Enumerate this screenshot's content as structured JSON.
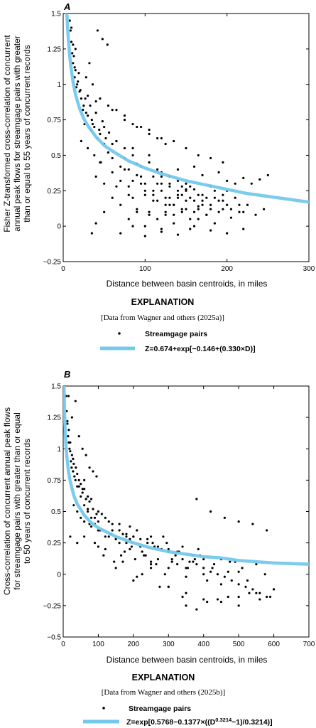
{
  "chart_data": [
    {
      "type": "scatter",
      "panel_label": "A",
      "xlabel": "Distance between basin centroids, in miles",
      "ylabel_lines": [
        "Fisher Z-transformed cross-correlation of concurrent",
        "annual peak flows for streamgage pairs with greater",
        "than or equal to 55 years of concurrent records"
      ],
      "xlim": [
        0,
        300
      ],
      "ylim": [
        -0.25,
        1.5
      ],
      "xticks": [
        0,
        100,
        200,
        300
      ],
      "yticks": [
        -0.25,
        0,
        0.25,
        0.5,
        0.75,
        1,
        1.25,
        1.5
      ],
      "ytick_labels": [
        "−0.25",
        "0",
        "0.25",
        "0.5",
        "0.75",
        "1",
        "1.25",
        "1.5"
      ],
      "grid": false,
      "colors": {
        "points": "#000000",
        "curve": "#74c8ec"
      },
      "legend": {
        "title": "EXPLANATION",
        "source": "[Data from Wagner and others (2025a)]",
        "points_label": "Streamgage pairs",
        "curve_label": "Z=0.674+exp[−0.146+(0.330×D)]"
      },
      "series": [
        {
          "kind": "points",
          "x": [
            8,
            9,
            10,
            11,
            12,
            13,
            14,
            15,
            16,
            18,
            20,
            22,
            25,
            28,
            30,
            35,
            38,
            40,
            45,
            50,
            10,
            12,
            14,
            15,
            17,
            19,
            21,
            24,
            27,
            30,
            33,
            36,
            40,
            44,
            48,
            52,
            56,
            60,
            22,
            26,
            30,
            34,
            38,
            42,
            46,
            50,
            55,
            60,
            65,
            70,
            75,
            80,
            85,
            90,
            40,
            45,
            50,
            55,
            60,
            65,
            70,
            75,
            80,
            85,
            90,
            95,
            100,
            105,
            110,
            115,
            120,
            60,
            65,
            70,
            75,
            80,
            85,
            90,
            95,
            100,
            105,
            110,
            115,
            120,
            125,
            130,
            135,
            140,
            145,
            150,
            80,
            85,
            90,
            95,
            100,
            105,
            110,
            115,
            120,
            125,
            130,
            135,
            140,
            145,
            150,
            155,
            160,
            165,
            170,
            100,
            105,
            110,
            115,
            120,
            125,
            130,
            135,
            140,
            145,
            150,
            155,
            160,
            165,
            170,
            175,
            180,
            185,
            190,
            195,
            200,
            120,
            125,
            130,
            135,
            140,
            145,
            150,
            155,
            160,
            165,
            170,
            175,
            180,
            185,
            190,
            195,
            200,
            205,
            210,
            215,
            220,
            130,
            140,
            150,
            160,
            170,
            180,
            190,
            200,
            210,
            220,
            230,
            240,
            250,
            155,
            165,
            175,
            185,
            195,
            205,
            215,
            225,
            235,
            245,
            60,
            75,
            90,
            105,
            120,
            135,
            150,
            165,
            180,
            195,
            45,
            55,
            65,
            75,
            85,
            95,
            105,
            115,
            125,
            28,
            32,
            36,
            42,
            48,
            54,
            35,
            40,
            50,
            70,
            85,
            100,
            120,
            140,
            160,
            180,
            200,
            220
          ],
          "y": [
            1.45,
            1.38,
            1.3,
            1.22,
            1.15,
            1.2,
            1.05,
            1.1,
            0.98,
            1.02,
            0.95,
            0.9,
            0.85,
            0.8,
            0.92,
            0.75,
            0.7,
            0.88,
            0.65,
            0.7,
            1.4,
            1.28,
            1.12,
            1.25,
            1.0,
            1.08,
            0.96,
            0.82,
            0.9,
            0.78,
            0.85,
            0.72,
            0.8,
            0.68,
            0.74,
            0.62,
            0.66,
            0.58,
            0.6,
            0.72,
            0.55,
            0.68,
            0.5,
            0.62,
            0.45,
            0.58,
            0.52,
            0.48,
            0.6,
            0.42,
            0.55,
            0.4,
            0.5,
            0.44,
            0.35,
            0.45,
            0.3,
            0.52,
            0.38,
            0.6,
            0.32,
            0.48,
            0.28,
            0.55,
            0.36,
            0.42,
            0.3,
            0.5,
            0.25,
            0.4,
            0.35,
            0.2,
            0.28,
            0.15,
            0.4,
            0.22,
            0.32,
            0.1,
            0.35,
            0.25,
            0.45,
            0.18,
            0.3,
            0.38,
            0.2,
            0.28,
            0.15,
            0.32,
            0.22,
            0.26,
            0.05,
            0.2,
            0.12,
            0.3,
            0.22,
            0.08,
            0.35,
            0.18,
            0.25,
            0.1,
            0.3,
            0.15,
            0.22,
            0.28,
            0.12,
            0.2,
            0.26,
            0.14,
            0.18,
            0.0,
            0.1,
            0.22,
            0.05,
            0.3,
            0.15,
            0.2,
            0.08,
            0.25,
            0.12,
            0.18,
            0.28,
            0.1,
            0.22,
            0.15,
            0.2,
            0.12,
            0.25,
            0.18,
            0.22,
            0.15,
            -0.02,
            0.08,
            0.15,
            0.02,
            0.2,
            0.1,
            0.25,
            0.05,
            0.18,
            0.12,
            0.22,
            0.08,
            0.15,
            0.2,
            0.1,
            0.18,
            0.25,
            0.12,
            0.2,
            0.15,
            0.1,
            0.35,
            0.4,
            0.3,
            0.42,
            0.36,
            0.28,
            0.38,
            0.32,
            0.3,
            0.34,
            0.3,
            0.33,
            0.36,
            -0.02,
            0.05,
            0.08,
            0.02,
            0.12,
            0.06,
            0.1,
            0.15,
            0.08,
            0.12,
            0.82,
            0.75,
            0.7,
            0.68,
            0.62,
            0.6,
            0.55,
            0.5,
            0.48,
            0.45,
            0.9,
            0.85,
            0.82,
            0.78,
            0.72,
            0.7,
            0.65,
            0.62,
            0.58,
            1.05,
            1.15,
            1.0,
            1.38,
            1.32,
            1.28,
            -0.05,
            0.02,
            0.1,
            -0.05,
            0.0,
            -0.07,
            -0.04,
            -0.06,
            0.0,
            -0.03,
            -0.05,
            -0.02
          ]
        },
        {
          "kind": "curve",
          "x": [
            4,
            6,
            8,
            10,
            12,
            15,
            20,
            25,
            30,
            40,
            50,
            60,
            80,
            100,
            120,
            150,
            175,
            200,
            225,
            250,
            275,
            300
          ],
          "y": [
            1.55,
            1.34,
            1.2,
            1.1,
            1.02,
            0.93,
            0.83,
            0.76,
            0.71,
            0.63,
            0.57,
            0.53,
            0.46,
            0.41,
            0.37,
            0.32,
            0.29,
            0.26,
            0.23,
            0.21,
            0.19,
            0.17
          ]
        }
      ]
    },
    {
      "type": "scatter",
      "panel_label": "B",
      "xlabel": "Distance between basin centroids, in miles",
      "ylabel_lines": [
        "Cross-correlation of concurrent annual peak flows",
        "for streamgage pairs with greater than or equal",
        "to 50 years of concurrent records"
      ],
      "xlim": [
        0,
        700
      ],
      "ylim": [
        -0.5,
        1.5
      ],
      "xticks": [
        0,
        100,
        200,
        300,
        400,
        500,
        600,
        700
      ],
      "yticks": [
        -0.5,
        -0.25,
        0,
        0.25,
        0.5,
        0.75,
        1,
        1.25,
        1.5
      ],
      "ytick_labels": [
        "−0.5",
        "−0.25",
        "0",
        "0.25",
        "0.5",
        "0.75",
        "1",
        "1.25",
        "1.5"
      ],
      "grid": false,
      "colors": {
        "points": "#000000",
        "curve": "#74c8ec"
      },
      "legend": {
        "title": "EXPLANATION",
        "source": "[Data from Wagner and others (2025b)]",
        "points_label": "Streamgage pairs",
        "curve_parts": [
          "Z=exp[0.5768−0.1377×((D",
          "0.3214",
          "−1)/0.3214)]"
        ]
      },
      "series": [
        {
          "kind": "points",
          "x": [
            8,
            10,
            12,
            14,
            16,
            18,
            20,
            22,
            25,
            28,
            30,
            35,
            40,
            45,
            50,
            55,
            60,
            65,
            70,
            12,
            16,
            20,
            24,
            28,
            32,
            36,
            40,
            45,
            50,
            55,
            60,
            65,
            70,
            75,
            80,
            85,
            90,
            95,
            100,
            30,
            40,
            50,
            60,
            70,
            80,
            90,
            100,
            110,
            120,
            130,
            140,
            150,
            160,
            170,
            180,
            190,
            200,
            60,
            75,
            90,
            105,
            120,
            135,
            150,
            165,
            180,
            195,
            210,
            225,
            240,
            255,
            270,
            285,
            300,
            100,
            115,
            130,
            145,
            160,
            175,
            190,
            205,
            220,
            235,
            250,
            265,
            280,
            295,
            310,
            325,
            340,
            355,
            370,
            385,
            400,
            150,
            170,
            190,
            210,
            230,
            250,
            270,
            290,
            310,
            330,
            350,
            370,
            390,
            410,
            430,
            450,
            470,
            490,
            510,
            200,
            225,
            250,
            275,
            300,
            325,
            350,
            375,
            400,
            425,
            450,
            475,
            500,
            525,
            550,
            575,
            600,
            250,
            300,
            350,
            400,
            450,
            500,
            550,
            600,
            300,
            340,
            380,
            420,
            460,
            500,
            540,
            580,
            20,
            40,
            60,
            80,
            100,
            120,
            140,
            160,
            180,
            200,
            220,
            240,
            260,
            280,
            300,
            320,
            340,
            360,
            380,
            400,
            420,
            440,
            460,
            480,
            500,
            520,
            540,
            560,
            580,
            350,
            380,
            410,
            440,
            470,
            500,
            530,
            560,
            590,
            15,
            25,
            35,
            45,
            55,
            65,
            75,
            85,
            95
          ],
          "y": [
            1.42,
            1.3,
            1.22,
            1.1,
            1.15,
            1.0,
            1.05,
            0.9,
            0.95,
            0.82,
            0.88,
            0.75,
            0.8,
            0.7,
            0.72,
            0.65,
            0.68,
            0.6,
            0.62,
            1.2,
            1.05,
            0.98,
            0.85,
            0.92,
            0.78,
            0.85,
            0.7,
            0.75,
            0.62,
            0.68,
            0.55,
            0.6,
            0.5,
            0.58,
            0.45,
            0.52,
            0.4,
            0.48,
            0.42,
            0.55,
            0.5,
            0.45,
            0.42,
            0.52,
            0.38,
            0.45,
            0.35,
            0.48,
            0.3,
            0.42,
            0.35,
            0.28,
            0.4,
            0.32,
            0.25,
            0.38,
            0.3,
            0.3,
            0.4,
            0.25,
            0.35,
            0.2,
            0.32,
            0.28,
            0.15,
            0.3,
            0.22,
            0.35,
            0.18,
            0.28,
            0.25,
            0.12,
            0.3,
            0.2,
            0.22,
            0.15,
            0.3,
            0.1,
            0.25,
            0.18,
            0.28,
            0.12,
            0.22,
            0.15,
            0.3,
            0.08,
            0.2,
            0.25,
            0.1,
            0.18,
            0.22,
            0.05,
            0.15,
            0.2,
            0.12,
            0.05,
            0.1,
            0.2,
            -0.02,
            0.15,
            0.08,
            0.22,
            0.0,
            0.12,
            0.18,
            0.05,
            0.1,
            0.15,
            -0.05,
            0.08,
            0.12,
            0.02,
            0.1,
            0.05,
            -0.05,
            0.0,
            0.1,
            -0.1,
            0.05,
            0.08,
            -0.02,
            0.12,
            0.0,
            0.05,
            -0.08,
            0.1,
            0.02,
            -0.05,
            0.08,
            0.0,
            -0.12,
            0.05,
            -0.1,
            -0.15,
            -0.2,
            -0.22,
            -0.18,
            -0.15,
            -0.12,
            -0.1,
            -0.18,
            0.6,
            0.5,
            0.45,
            0.42,
            0.4,
            0.35,
            0.3,
            0.25,
            0.75,
            0.6,
            0.5,
            0.45,
            0.4,
            0.35,
            0.32,
            0.3,
            0.28,
            0.25,
            0.22,
            0.2,
            0.18,
            0.15,
            0.12,
            0.1,
            0.08,
            0.05,
            0.02,
            0.0,
            -0.02,
            -0.05,
            -0.08,
            -0.1,
            -0.12,
            -0.15,
            -0.18,
            -0.25,
            -0.28,
            -0.22,
            -0.2,
            -0.18,
            -0.25,
            -0.15,
            -0.2,
            -0.18,
            1.42,
            1.25,
            1.38,
            1.1,
            1.0,
            0.95,
            0.85,
            0.82,
            0.78
          ]
        },
        {
          "kind": "curve",
          "x": [
            2,
            4,
            6,
            8,
            10,
            15,
            20,
            30,
            40,
            60,
            80,
            100,
            150,
            200,
            250,
            300,
            350,
            400,
            450,
            500,
            550,
            600,
            650,
            700
          ],
          "y": [
            1.55,
            1.27,
            1.12,
            1.02,
            0.95,
            0.82,
            0.74,
            0.63,
            0.56,
            0.47,
            0.41,
            0.37,
            0.3,
            0.25,
            0.21,
            0.18,
            0.16,
            0.14,
            0.13,
            0.11,
            0.1,
            0.09,
            0.085,
            0.08
          ]
        }
      ]
    }
  ]
}
